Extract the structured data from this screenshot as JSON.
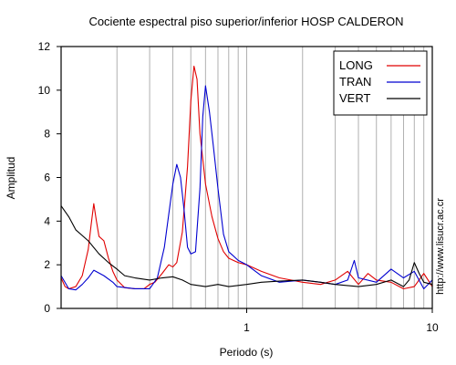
{
  "chart_data": {
    "type": "line",
    "title": "Cociente espectral piso superior/inferior  HOSP CALDERON",
    "xlabel": "Periodo (s)",
    "ylabel": "Amplitud",
    "x_scale": "log",
    "xlim": [
      0.1,
      10
    ],
    "ylim": [
      0,
      12
    ],
    "x_ticks": [
      {
        "value": 1,
        "label": "1"
      },
      {
        "value": 10,
        "label": "10"
      }
    ],
    "y_ticks": [
      0,
      2,
      4,
      6,
      8,
      10,
      12
    ],
    "grid": "vertical-minor",
    "legend_position": "top-right",
    "series": [
      {
        "name": "LONG",
        "color": "#e00000",
        "points": [
          [
            0.1,
            1.4
          ],
          [
            0.105,
            1.0
          ],
          [
            0.11,
            0.9
          ],
          [
            0.12,
            1.0
          ],
          [
            0.13,
            1.5
          ],
          [
            0.14,
            2.7
          ],
          [
            0.145,
            3.8
          ],
          [
            0.15,
            4.8
          ],
          [
            0.155,
            4.0
          ],
          [
            0.16,
            3.3
          ],
          [
            0.17,
            3.1
          ],
          [
            0.18,
            2.3
          ],
          [
            0.19,
            1.7
          ],
          [
            0.2,
            1.3
          ],
          [
            0.22,
            0.95
          ],
          [
            0.25,
            0.9
          ],
          [
            0.28,
            0.9
          ],
          [
            0.3,
            1.1
          ],
          [
            0.32,
            1.2
          ],
          [
            0.35,
            1.6
          ],
          [
            0.38,
            2.0
          ],
          [
            0.4,
            1.9
          ],
          [
            0.42,
            2.1
          ],
          [
            0.45,
            3.5
          ],
          [
            0.48,
            6.5
          ],
          [
            0.5,
            9.5
          ],
          [
            0.52,
            11.1
          ],
          [
            0.54,
            10.5
          ],
          [
            0.56,
            8.0
          ],
          [
            0.6,
            5.7
          ],
          [
            0.65,
            4.2
          ],
          [
            0.7,
            3.2
          ],
          [
            0.75,
            2.6
          ],
          [
            0.8,
            2.3
          ],
          [
            0.9,
            2.1
          ],
          [
            1.0,
            2.0
          ],
          [
            1.2,
            1.7
          ],
          [
            1.5,
            1.4
          ],
          [
            2.0,
            1.2
          ],
          [
            2.5,
            1.1
          ],
          [
            3.0,
            1.3
          ],
          [
            3.5,
            1.7
          ],
          [
            4.0,
            1.1
          ],
          [
            4.5,
            1.6
          ],
          [
            5.0,
            1.3
          ],
          [
            6.0,
            1.2
          ],
          [
            7.0,
            0.9
          ],
          [
            8.0,
            1.0
          ],
          [
            9.0,
            1.6
          ],
          [
            10.0,
            1.0
          ]
        ]
      },
      {
        "name": "TRAN",
        "color": "#0000d0",
        "points": [
          [
            0.1,
            1.5
          ],
          [
            0.11,
            0.9
          ],
          [
            0.12,
            0.85
          ],
          [
            0.13,
            1.1
          ],
          [
            0.14,
            1.4
          ],
          [
            0.15,
            1.75
          ],
          [
            0.17,
            1.5
          ],
          [
            0.19,
            1.2
          ],
          [
            0.2,
            1.0
          ],
          [
            0.25,
            0.9
          ],
          [
            0.3,
            0.9
          ],
          [
            0.33,
            1.4
          ],
          [
            0.36,
            2.8
          ],
          [
            0.38,
            4.3
          ],
          [
            0.4,
            5.7
          ],
          [
            0.42,
            6.6
          ],
          [
            0.44,
            6.0
          ],
          [
            0.46,
            4.5
          ],
          [
            0.48,
            2.8
          ],
          [
            0.5,
            2.5
          ],
          [
            0.53,
            2.6
          ],
          [
            0.56,
            5.5
          ],
          [
            0.58,
            8.8
          ],
          [
            0.6,
            10.2
          ],
          [
            0.63,
            9.0
          ],
          [
            0.66,
            7.5
          ],
          [
            0.7,
            5.5
          ],
          [
            0.75,
            3.4
          ],
          [
            0.8,
            2.6
          ],
          [
            0.9,
            2.2
          ],
          [
            1.0,
            2.0
          ],
          [
            1.2,
            1.5
          ],
          [
            1.5,
            1.2
          ],
          [
            2.0,
            1.3
          ],
          [
            2.5,
            1.2
          ],
          [
            3.0,
            1.1
          ],
          [
            3.5,
            1.3
          ],
          [
            3.8,
            2.2
          ],
          [
            4.0,
            1.4
          ],
          [
            5.0,
            1.2
          ],
          [
            6.0,
            1.8
          ],
          [
            7.0,
            1.4
          ],
          [
            8.0,
            1.7
          ],
          [
            9.0,
            0.9
          ],
          [
            10.0,
            1.3
          ]
        ]
      },
      {
        "name": "VERT",
        "color": "#000000",
        "points": [
          [
            0.1,
            4.7
          ],
          [
            0.11,
            4.2
          ],
          [
            0.12,
            3.6
          ],
          [
            0.14,
            3.1
          ],
          [
            0.16,
            2.5
          ],
          [
            0.18,
            2.1
          ],
          [
            0.2,
            1.8
          ],
          [
            0.22,
            1.5
          ],
          [
            0.25,
            1.4
          ],
          [
            0.3,
            1.3
          ],
          [
            0.35,
            1.4
          ],
          [
            0.4,
            1.45
          ],
          [
            0.45,
            1.3
          ],
          [
            0.5,
            1.1
          ],
          [
            0.6,
            1.0
          ],
          [
            0.7,
            1.1
          ],
          [
            0.8,
            1.0
          ],
          [
            1.0,
            1.1
          ],
          [
            1.2,
            1.2
          ],
          [
            1.5,
            1.25
          ],
          [
            2.0,
            1.3
          ],
          [
            2.5,
            1.2
          ],
          [
            3.0,
            1.1
          ],
          [
            4.0,
            1.0
          ],
          [
            5.0,
            1.1
          ],
          [
            6.0,
            1.3
          ],
          [
            7.0,
            1.0
          ],
          [
            7.5,
            1.3
          ],
          [
            8.0,
            2.1
          ],
          [
            8.5,
            1.6
          ],
          [
            9.0,
            1.2
          ],
          [
            10.0,
            1.1
          ]
        ]
      }
    ]
  },
  "watermark_url": "http://www.lisucr.ac.cr"
}
